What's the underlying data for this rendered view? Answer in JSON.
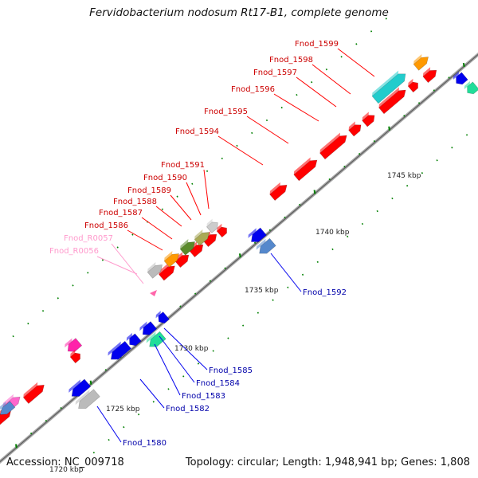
{
  "title": "Fervidobacterium nodosum Rt17-B1, complete genome",
  "accession": "Accession: NC_009718",
  "summary": "Topology: circular; Length: 1,948,941 bp; Genes: 1,808",
  "scale_labels": [
    "1720 kbp",
    "1725 kbp",
    "1730 kbp",
    "1735 kbp",
    "1740 kbp",
    "1745 kbp"
  ],
  "colors": {
    "backbone": "#999999",
    "forward_gene": "#ff0000",
    "reverse_gene": "#0000ee",
    "forward_label": "#cc0000",
    "reverse_label": "#0000aa",
    "rna_label": "#ff99cc",
    "tick": "#008000"
  },
  "labels_forward": [
    "Fnod_1599",
    "Fnod_1598",
    "Fnod_1597",
    "Fnod_1596",
    "Fnod_1595",
    "Fnod_1594",
    "Fnod_1591",
    "Fnod_1590",
    "Fnod_1589",
    "Fnod_1588",
    "Fnod_1587",
    "Fnod_1586"
  ],
  "labels_rna": [
    "Fnod_R0057",
    "Fnod_R0056"
  ],
  "labels_reverse": [
    "Fnod_1592",
    "Fnod_1585",
    "Fnod_1584",
    "Fnod_1583",
    "Fnod_1582",
    "Fnod_1580"
  ]
}
